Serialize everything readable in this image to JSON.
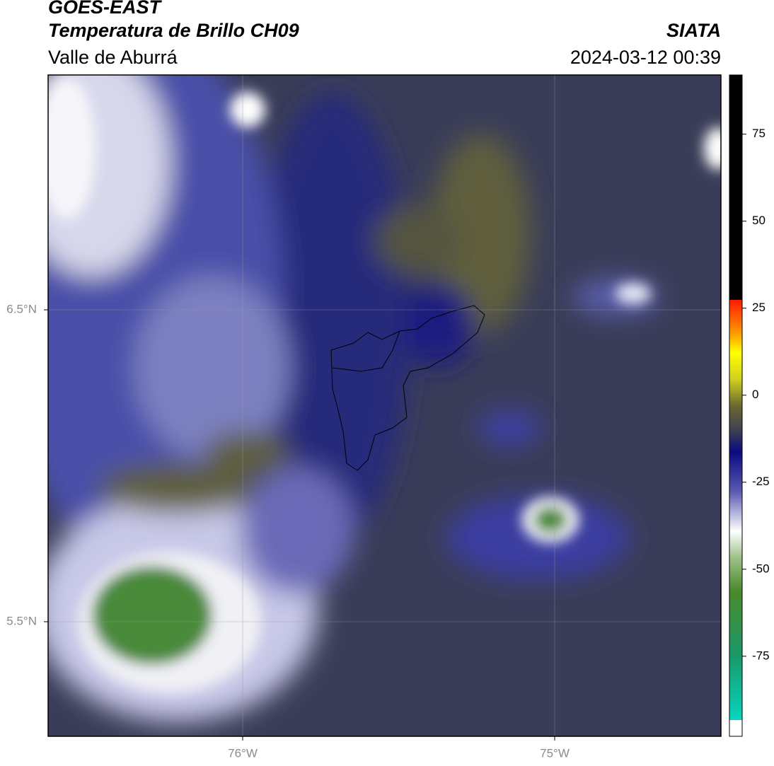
{
  "header": {
    "title": "GOES-EAST",
    "subtitle": "Temperatura de Brillo CH09",
    "region": "Valle de Aburrá",
    "agency": "SIATA",
    "datetime": "2024-03-12 00:39"
  },
  "map": {
    "lat_labels": [
      "6.5°N",
      "5.5°N"
    ],
    "lon_labels": [
      "76°W",
      "75°W"
    ]
  },
  "colorbar": {
    "lim": [
      -98,
      92
    ],
    "ticks": [
      75,
      50,
      25,
      0,
      -25,
      -50,
      -75
    ]
  }
}
